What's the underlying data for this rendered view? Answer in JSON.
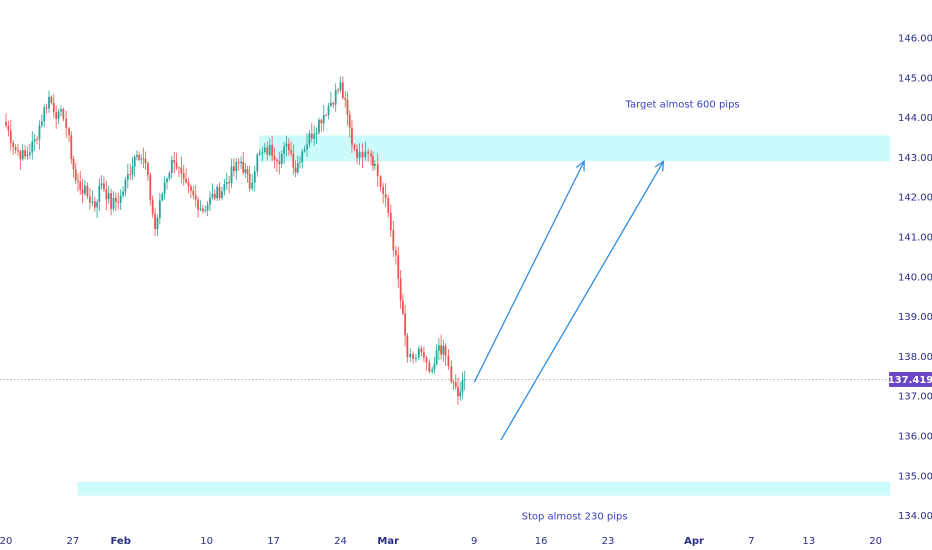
{
  "colors": {
    "up": "#26a69a",
    "down": "#ef5350",
    "zone": "#ccfbfb",
    "arrow": "#2f8ee0",
    "price_badge": "#6a45c8",
    "axis_text": "#2a2e80",
    "annotation_text": "#3b3fc0"
  },
  "chart_data": {
    "type": "candlestick",
    "x_axis": {
      "ticks": [
        {
          "label": "20",
          "day": 0
        },
        {
          "label": "27",
          "day": 7
        },
        {
          "label": "Feb",
          "day": 12,
          "bold": true
        },
        {
          "label": "10",
          "day": 21
        },
        {
          "label": "17",
          "day": 28
        },
        {
          "label": "24",
          "day": 35
        },
        {
          "label": "Mar",
          "day": 40,
          "bold": true
        },
        {
          "label": "9",
          "day": 49
        },
        {
          "label": "16",
          "day": 56
        },
        {
          "label": "23",
          "day": 63
        },
        {
          "label": "Apr",
          "day": 72,
          "bold": true
        },
        {
          "label": "7",
          "day": 78
        },
        {
          "label": "13",
          "day": 84
        },
        {
          "label": "20",
          "day": 91
        }
      ]
    },
    "y_axis": {
      "range": [
        133.8,
        146.3
      ],
      "ticks": [
        "134.000",
        "135.000",
        "136.000",
        "137.000",
        "138.000",
        "139.000",
        "140.000",
        "141.000",
        "142.000",
        "143.000",
        "144.000",
        "145.000",
        "146.000"
      ]
    },
    "last_price": {
      "value": 137.419,
      "label": "137.419"
    },
    "zones": [
      {
        "name": "target-zone",
        "from_day": 26.5,
        "to_day": 93,
        "low": 142.9,
        "high": 143.55
      },
      {
        "name": "stop-zone",
        "from_day": 7.5,
        "to_day": 93,
        "low": 134.5,
        "high": 134.85
      }
    ],
    "arrows": [
      {
        "from_day": 49,
        "from_price": 137.35,
        "to_day": 60.5,
        "to_price": 142.9
      },
      {
        "from_day": 51.8,
        "from_price": 135.9,
        "to_day": 68.8,
        "to_price": 142.9
      }
    ],
    "annotations": [
      {
        "name": "target-label",
        "text": "Target almost 600 pips",
        "day": 70.8,
        "price": 144.25
      },
      {
        "name": "stop-label",
        "text": "Stop almost 230 pips",
        "day": 59.5,
        "price": 133.9
      }
    ],
    "waypoints": [
      [
        0,
        143.8
      ],
      [
        1,
        143.2
      ],
      [
        2,
        143.0
      ],
      [
        3,
        143.4
      ],
      [
        4,
        144.2
      ],
      [
        4.5,
        144.5
      ],
      [
        5.5,
        144.0
      ],
      [
        6,
        144.1
      ],
      [
        6.6,
        143.4
      ],
      [
        7.3,
        142.4
      ],
      [
        8,
        142.2
      ],
      [
        9.3,
        141.8
      ],
      [
        10,
        142.4
      ],
      [
        11,
        141.8
      ],
      [
        12,
        142.0
      ],
      [
        13,
        142.7
      ],
      [
        13.7,
        143.2
      ],
      [
        14.6,
        142.8
      ],
      [
        15.6,
        141.2
      ],
      [
        16.6,
        142.4
      ],
      [
        17.6,
        143.0
      ],
      [
        18.6,
        142.3
      ],
      [
        19.6,
        142.0
      ],
      [
        20.6,
        141.7
      ],
      [
        21.6,
        142.0
      ],
      [
        22.6,
        142.2
      ],
      [
        23.6,
        142.6
      ],
      [
        24.6,
        142.9
      ],
      [
        25.5,
        142.3
      ],
      [
        26.3,
        143.0
      ],
      [
        27.6,
        143.2
      ],
      [
        28.6,
        143.0
      ],
      [
        29.6,
        143.3
      ],
      [
        30.3,
        142.7
      ],
      [
        31,
        143.2
      ],
      [
        32,
        143.6
      ],
      [
        33,
        144.0
      ],
      [
        34,
        144.4
      ],
      [
        35,
        144.8
      ],
      [
        35.5,
        144.3
      ],
      [
        36.2,
        143.4
      ],
      [
        37,
        143.0
      ],
      [
        37.6,
        143.3
      ],
      [
        38.2,
        143.1
      ],
      [
        38.6,
        142.8
      ],
      [
        39.2,
        142.3
      ],
      [
        40,
        141.6
      ],
      [
        40.8,
        140.4
      ],
      [
        41.3,
        139.4
      ],
      [
        42,
        138.0
      ],
      [
        42.6,
        137.8
      ],
      [
        43.2,
        138.2
      ],
      [
        44,
        137.7
      ],
      [
        44.6,
        137.5
      ],
      [
        45.3,
        138.3
      ],
      [
        46,
        138.0
      ],
      [
        46.6,
        137.4
      ],
      [
        47.3,
        137.0
      ],
      [
        48,
        137.4
      ]
    ]
  }
}
